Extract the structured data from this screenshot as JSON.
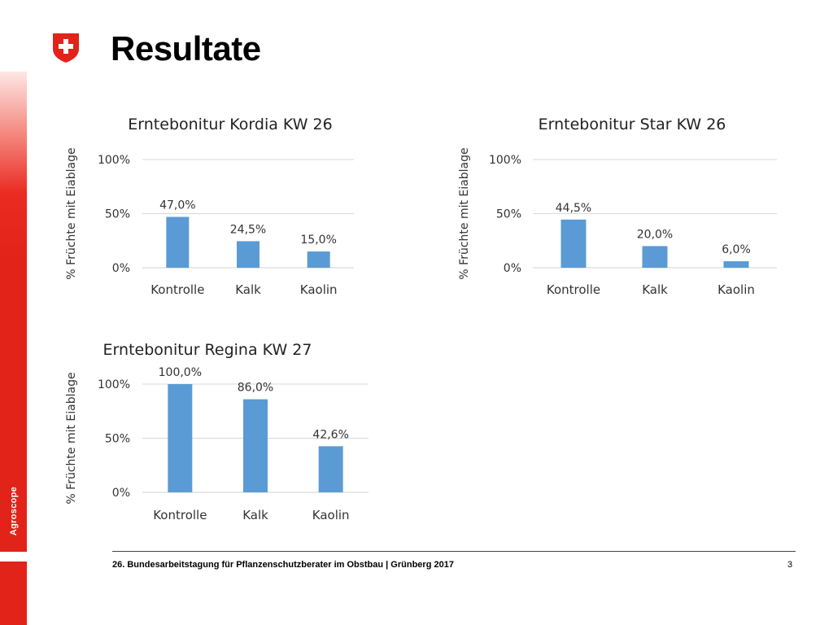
{
  "slide": {
    "title": "Resultate",
    "footer": "26. Bundesarbeitstagung für Pflanzenschutzberater im Obstbau | Grünberg 2017",
    "page_number": "3",
    "brand": "Agroscope",
    "logo": "swiss-cross-shield-icon",
    "colors": {
      "accent_red": "#e2231a",
      "bar_blue": "#5b9bd5"
    }
  },
  "chart_data": [
    {
      "type": "bar",
      "title": "Erntebonitur Kordia KW 26",
      "ylabel": "% Früchte mit Eiablage",
      "categories": [
        "Kontrolle",
        "Kalk",
        "Kaolin"
      ],
      "values": [
        47.0,
        24.5,
        15.0
      ],
      "value_labels": [
        "47,0%",
        "24,5%",
        "15,0%"
      ],
      "ylim": [
        0,
        100
      ],
      "yticks": [
        0,
        50,
        100
      ],
      "ytick_labels": [
        "0%",
        "50%",
        "100%"
      ],
      "grid": true,
      "legend": "none"
    },
    {
      "type": "bar",
      "title": "Erntebonitur Star KW 26",
      "ylabel": "% Früchte mit Eiablage",
      "categories": [
        "Kontrolle",
        "Kalk",
        "Kaolin"
      ],
      "values": [
        44.5,
        20.0,
        6.0
      ],
      "value_labels": [
        "44,5%",
        "20,0%",
        "6,0%"
      ],
      "ylim": [
        0,
        100
      ],
      "yticks": [
        0,
        50,
        100
      ],
      "ytick_labels": [
        "0%",
        "50%",
        "100%"
      ],
      "grid": true,
      "legend": "none"
    },
    {
      "type": "bar",
      "title": "Erntebonitur Regina KW 27",
      "ylabel": "% Früchte mit Eiablage",
      "categories": [
        "Kontrolle",
        "Kalk",
        "Kaolin"
      ],
      "values": [
        100.0,
        86.0,
        42.6
      ],
      "value_labels": [
        "100,0%",
        "86,0%",
        "42,6%"
      ],
      "ylim": [
        0,
        100
      ],
      "yticks": [
        0,
        50,
        100
      ],
      "ytick_labels": [
        "0%",
        "50%",
        "100%"
      ],
      "grid": true,
      "legend": "none"
    }
  ]
}
